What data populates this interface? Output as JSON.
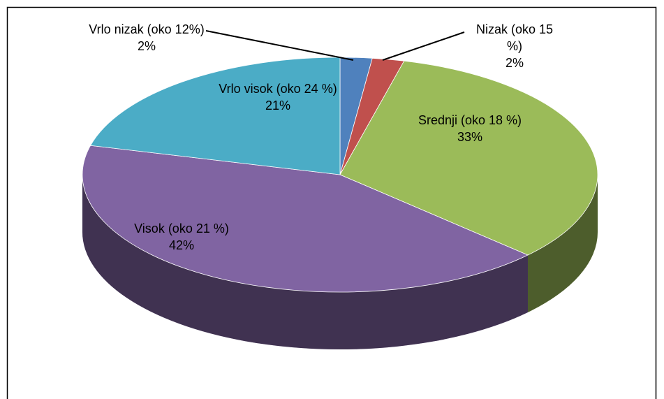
{
  "chart_data": {
    "type": "pie",
    "categories": [
      "Vrlo nizak (oko 12%)",
      "Nizak (oko 15 %)",
      "Srednji (oko 18 %)",
      "Visok (oko 21 %)",
      "Vrlo visok (oko 24 %)"
    ],
    "values": [
      2,
      2,
      33,
      42,
      21
    ],
    "value_labels": [
      "2%",
      "2%",
      "33%",
      "42%",
      "21%"
    ],
    "colors": [
      "#4f81bd",
      "#c0504d",
      "#9bbb59",
      "#8064a2",
      "#4bacc6"
    ]
  }
}
